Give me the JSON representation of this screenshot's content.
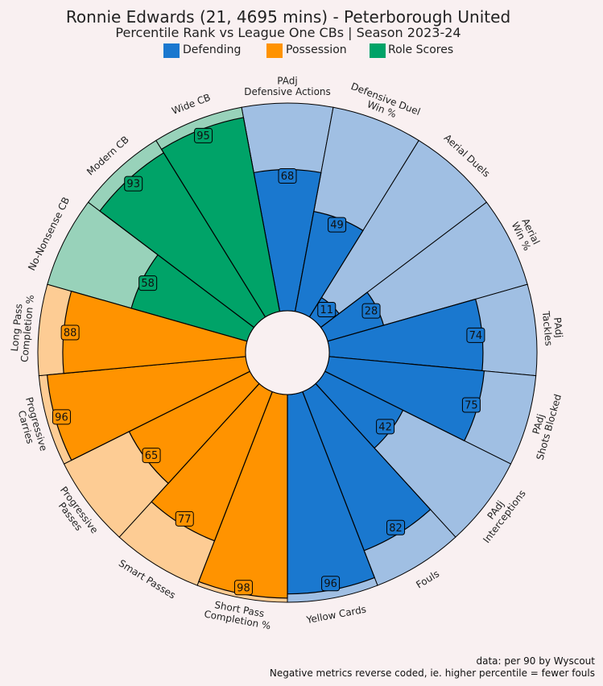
{
  "header": {
    "title": "Ronnie Edwards (21, 4695 mins) - Peterborough United",
    "subtitle": "Percentile Rank vs League One CBs | Season 2023-24"
  },
  "legend": [
    {
      "label": "Defending",
      "color": "#1a78cf"
    },
    {
      "label": "Possession",
      "color": "#ff9300"
    },
    {
      "label": "Role Scores",
      "color": "#00a368"
    }
  ],
  "footer": {
    "line1": "data: per 90 by Wyscout",
    "line2": "Negative metrics reverse coded, ie. higher percentile = fewer fouls"
  },
  "chart_data": {
    "type": "radial-bar",
    "range": [
      0,
      100
    ],
    "background_colors": {
      "Defending": "#a0bfe3",
      "Possession": "#fdcc94",
      "Role Scores": "#98d2ba"
    },
    "categories": [
      {
        "label": [
          "PAdj",
          "Defensive Actions"
        ],
        "value": 68,
        "group": "Defending"
      },
      {
        "label": [
          "Defensive Duel",
          "Win %"
        ],
        "value": 49,
        "group": "Defending"
      },
      {
        "label": [
          "Aerial Duels"
        ],
        "value": 11,
        "group": "Defending"
      },
      {
        "label": [
          "Aerial",
          "Win %"
        ],
        "value": 28,
        "group": "Defending"
      },
      {
        "label": [
          "PAdj",
          "Tackles"
        ],
        "value": 74,
        "group": "Defending"
      },
      {
        "label": [
          "PAdj",
          "Shots Blocked"
        ],
        "value": 75,
        "group": "Defending"
      },
      {
        "label": [
          "PAdj",
          "Interceptions"
        ],
        "value": 42,
        "group": "Defending"
      },
      {
        "label": [
          "Fouls"
        ],
        "value": 82,
        "group": "Defending"
      },
      {
        "label": [
          "Yellow Cards"
        ],
        "value": 96,
        "group": "Defending"
      },
      {
        "label": [
          "Short Pass",
          "Completion %"
        ],
        "value": 98,
        "group": "Possession"
      },
      {
        "label": [
          "Smart Passes"
        ],
        "value": 77,
        "group": "Possession"
      },
      {
        "label": [
          "Progressive",
          "Passes"
        ],
        "value": 65,
        "group": "Possession"
      },
      {
        "label": [
          "Progressive",
          "Carries"
        ],
        "value": 96,
        "group": "Possession"
      },
      {
        "label": [
          "Long Pass",
          "Completion %"
        ],
        "value": 88,
        "group": "Possession"
      },
      {
        "label": [
          "No-Nonsense CB"
        ],
        "value": 58,
        "group": "Role Scores"
      },
      {
        "label": [
          "Modern CB"
        ],
        "value": 93,
        "group": "Role Scores"
      },
      {
        "label": [
          "Wide CB"
        ],
        "value": 95,
        "group": "Role Scores"
      }
    ]
  }
}
